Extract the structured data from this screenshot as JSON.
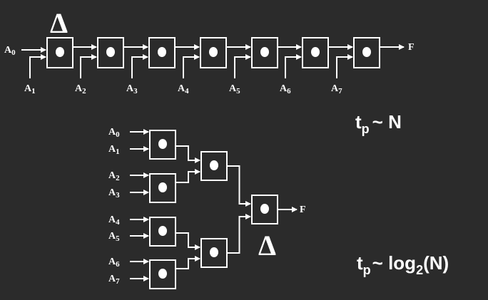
{
  "delta_symbol": "Δ",
  "chain": {
    "first_input": "A",
    "first_input_sub": "0",
    "side_inputs": [
      {
        "letter": "A",
        "sub": "1"
      },
      {
        "letter": "A",
        "sub": "2"
      },
      {
        "letter": "A",
        "sub": "3"
      },
      {
        "letter": "A",
        "sub": "4"
      },
      {
        "letter": "A",
        "sub": "5"
      },
      {
        "letter": "A",
        "sub": "6"
      },
      {
        "letter": "A",
        "sub": "7"
      }
    ],
    "output": "F"
  },
  "tree": {
    "inputs": [
      {
        "letter": "A",
        "sub": "0"
      },
      {
        "letter": "A",
        "sub": "1"
      },
      {
        "letter": "A",
        "sub": "2"
      },
      {
        "letter": "A",
        "sub": "3"
      },
      {
        "letter": "A",
        "sub": "4"
      },
      {
        "letter": "A",
        "sub": "5"
      },
      {
        "letter": "A",
        "sub": "6"
      },
      {
        "letter": "A",
        "sub": "7"
      }
    ],
    "output": "F"
  },
  "equations": {
    "linear": {
      "t": "t",
      "sub": "p",
      "rest": "~ N"
    },
    "log": {
      "t": "t",
      "sub": "p",
      "tilde": "~ log",
      "sub2": "2",
      "rest": "(N)"
    }
  }
}
